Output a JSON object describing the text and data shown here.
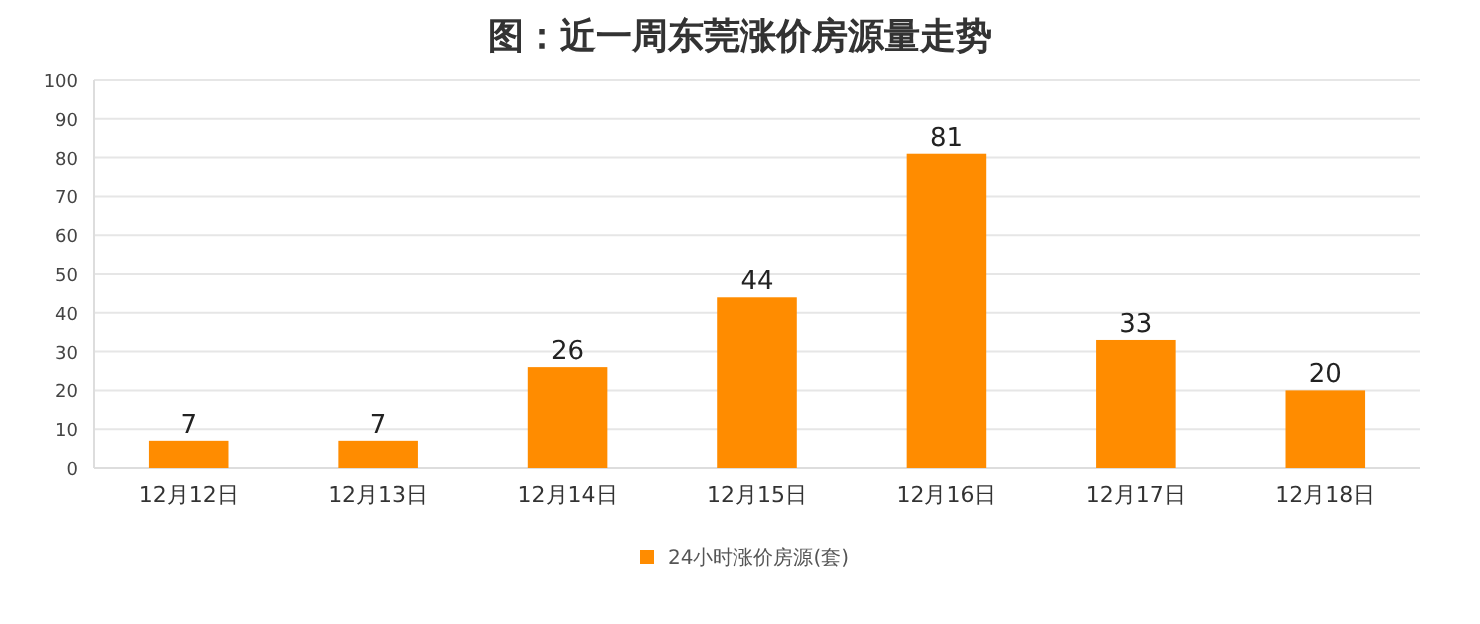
{
  "chart_data": {
    "type": "bar",
    "title": "图：近一周东莞涨价房源量走势",
    "categories": [
      "12月12日",
      "12月13日",
      "12月14日",
      "12月15日",
      "12月16日",
      "12月17日",
      "12月18日"
    ],
    "series": [
      {
        "name": "24小时涨价房源(套)",
        "color": "#ff8c00",
        "values": [
          7,
          7,
          26,
          44,
          81,
          33,
          20
        ]
      }
    ],
    "ylim": [
      0,
      100
    ],
    "yticks": [
      0,
      10,
      20,
      30,
      40,
      50,
      60,
      70,
      80,
      90,
      100
    ],
    "grid": "y",
    "data_labels": true,
    "legend": "bottom"
  }
}
